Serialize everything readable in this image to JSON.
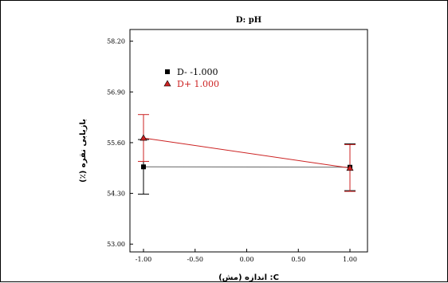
{
  "chart_data": {
    "type": "line",
    "title": "D: pH",
    "xlabel": "C: اندازه (مش)",
    "ylabel": "بازیابی نقره (٪)",
    "x": [
      -1.0,
      1.0
    ],
    "xlim": [
      -1.0,
      1.0
    ],
    "ylim": [
      52.8,
      58.5
    ],
    "x_ticks": [
      -1.0,
      -0.5,
      0.0,
      0.5,
      1.0
    ],
    "x_tick_labels": [
      "-1.00",
      "-0.50",
      "0.00",
      "0.50",
      "1.00"
    ],
    "y_ticks": [
      53.0,
      54.3,
      55.6,
      56.9,
      58.2
    ],
    "y_tick_labels": [
      "53.00",
      "54.30",
      "55.60",
      "56.90",
      "58.20"
    ],
    "grid": false,
    "legend_position": "top-left",
    "series": [
      {
        "name": "D- -1.000",
        "color": "#000000",
        "marker": "square",
        "values": [
          54.98,
          54.97
        ],
        "error_low": [
          54.28,
          54.37
        ],
        "error_high": [
          55.68,
          55.57
        ]
      },
      {
        "name": "D+ 1.000",
        "color": "#cc2222",
        "marker": "triangle",
        "values": [
          55.72,
          54.95
        ],
        "error_low": [
          55.12,
          54.35
        ],
        "error_high": [
          56.32,
          55.55
        ]
      }
    ]
  }
}
